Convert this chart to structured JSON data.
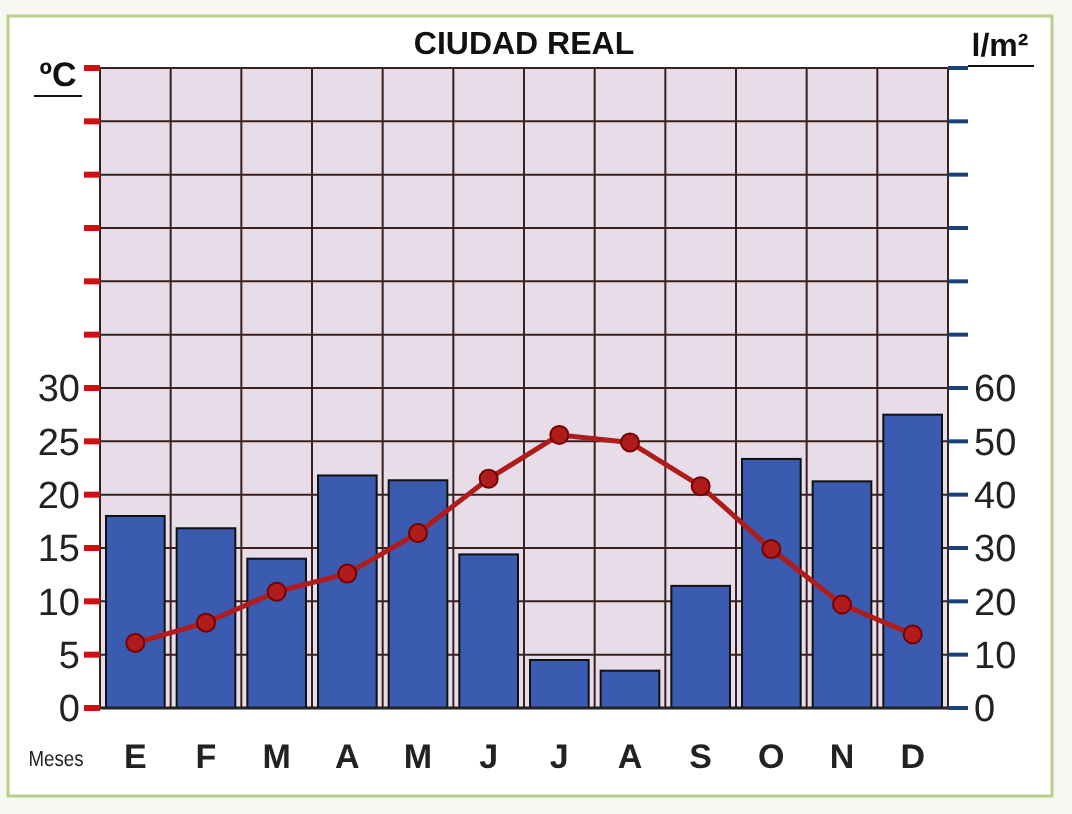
{
  "chart_data": {
    "type": "bar",
    "title": "CIUDAD REAL",
    "xlabel": "Meses",
    "ylabel": "ºC",
    "y2label": "l/m²",
    "categories": [
      "E",
      "F",
      "M",
      "A",
      "M",
      "J",
      "J",
      "A",
      "S",
      "O",
      "N",
      "D"
    ],
    "series": [
      {
        "axis": "y2",
        "color": "#3a5bb0",
        "values": [
          36,
          33.7,
          28,
          43.6,
          42.7,
          28.8,
          9,
          7,
          22.9,
          46.7,
          42.5,
          55
        ]
      },
      {
        "type": "line",
        "axis": "y",
        "color": "#b01c1c",
        "marker": "circle",
        "line_style": "solid",
        "values": [
          6.1,
          8,
          10.9,
          12.6,
          16.4,
          21.5,
          25.6,
          24.9,
          20.8,
          14.9,
          9.7,
          6.9
        ]
      }
    ],
    "ylim": [
      0,
      60
    ],
    "yticks": [
      0,
      5,
      10,
      15,
      20,
      25,
      30,
      {
        "value": 35,
        "label": null
      },
      {
        "value": 40,
        "label": null
      },
      {
        "value": 45,
        "label": null
      },
      {
        "value": 50,
        "label": null
      },
      {
        "value": 55,
        "label": null
      },
      {
        "value": 60,
        "label": null
      }
    ],
    "y2lim": [
      0,
      120
    ],
    "y2ticks": [
      0,
      10,
      20,
      30,
      40,
      50,
      60,
      {
        "value": 70,
        "label": null
      },
      {
        "value": 80,
        "label": null
      },
      {
        "value": 90,
        "label": null
      },
      {
        "value": 100,
        "label": null
      },
      {
        "value": 110,
        "label": null
      },
      {
        "value": 120,
        "label": null
      }
    ],
    "grid": true
  }
}
